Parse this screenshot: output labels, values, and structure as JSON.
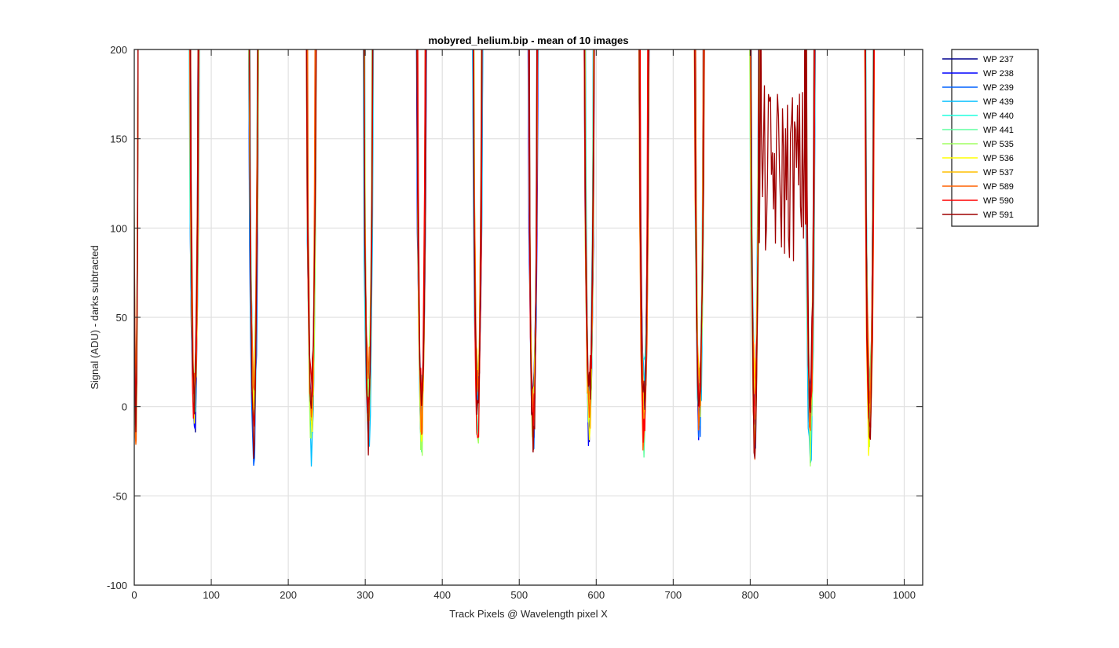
{
  "chart_data": {
    "type": "line",
    "title": "mobyred_helium.bip - mean of 10 images",
    "xlabel": "Track Pixels @ Wavelength pixel X",
    "ylabel": "Signal (ADU) - darks subtracted",
    "xlim": [
      0,
      1024
    ],
    "ylim": [
      -100,
      200
    ],
    "xticks": [
      0,
      100,
      200,
      300,
      400,
      500,
      600,
      700,
      800,
      900,
      1000
    ],
    "yticks": [
      -100,
      -50,
      0,
      50,
      100,
      150,
      200
    ],
    "xtick_labels": [
      "0",
      "100",
      "200",
      "300",
      "400",
      "500",
      "600",
      "700",
      "800",
      "900",
      "1000"
    ],
    "ytick_labels": [
      "-100",
      "-50",
      "0",
      "50",
      "100",
      "150",
      "200"
    ],
    "grid": true,
    "legend_position": "outside-top-right",
    "track_centers": [
      2,
      78,
      155,
      230,
      304,
      373,
      446,
      518,
      591,
      662,
      734,
      806,
      878,
      955
    ],
    "series": [
      {
        "name": "WP 237",
        "color": "#00008f"
      },
      {
        "name": "WP 238",
        "color": "#0000ff"
      },
      {
        "name": "WP 239",
        "color": "#0060ff"
      },
      {
        "name": "WP 439",
        "color": "#00bfff"
      },
      {
        "name": "WP 440",
        "color": "#20ffdf"
      },
      {
        "name": "WP 441",
        "color": "#60ffa0"
      },
      {
        "name": "WP 535",
        "color": "#a0ff60"
      },
      {
        "name": "WP 536",
        "color": "#ffff00"
      },
      {
        "name": "WP 537",
        "color": "#ffbf00"
      },
      {
        "name": "WP 589",
        "color": "#ff6000"
      },
      {
        "name": "WP 590",
        "color": "#ff0000"
      },
      {
        "name": "WP 591",
        "color": "#9f0000"
      }
    ]
  }
}
